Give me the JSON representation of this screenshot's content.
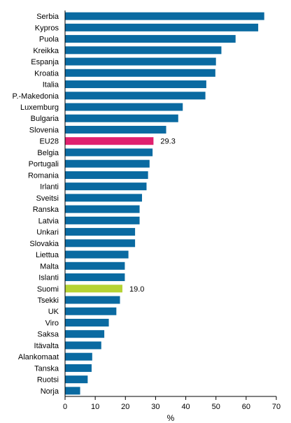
{
  "chart_data": {
    "type": "bar",
    "orientation": "horizontal",
    "categories": [
      "Serbia",
      "Kypros",
      "Puola",
      "Kreikka",
      "Espanja",
      "Kroatia",
      "Italia",
      "P.-Makedonia",
      "Luxemburg",
      "Bulgaria",
      "Slovenia",
      "EU28",
      "Belgia",
      "Portugali",
      "Romania",
      "Irlanti",
      "Sveitsi",
      "Ranska",
      "Latvia",
      "Unkari",
      "Slovakia",
      "Liettua",
      "Malta",
      "Islanti",
      "Suomi",
      "Tsekki",
      "UK",
      "Viro",
      "Saksa",
      "Itävalta",
      "Alankomaat",
      "Tanska",
      "Ruotsi",
      "Norja"
    ],
    "values": [
      66,
      64,
      56.5,
      51.8,
      50,
      49.8,
      46.8,
      46.5,
      39,
      37.5,
      33.5,
      29.3,
      29,
      28,
      27.5,
      27,
      25.5,
      24.7,
      24.7,
      23.2,
      23.2,
      21,
      19.8,
      19.8,
      19.0,
      18.2,
      17,
      14.5,
      13,
      12,
      9,
      8.8,
      7.5,
      5
    ],
    "highlight": {
      "EU28": "#e0206e",
      "Suomi": "#b5d334"
    },
    "data_labels": {
      "EU28": "29.3",
      "Suomi": "19.0"
    },
    "xlim": [
      0,
      70
    ],
    "xticks": [
      "0",
      "10",
      "20",
      "30",
      "40",
      "50",
      "60",
      "70"
    ],
    "xlabel": "%",
    "colors": {
      "bar": "#0a6aa1",
      "axis": "#000000"
    }
  }
}
